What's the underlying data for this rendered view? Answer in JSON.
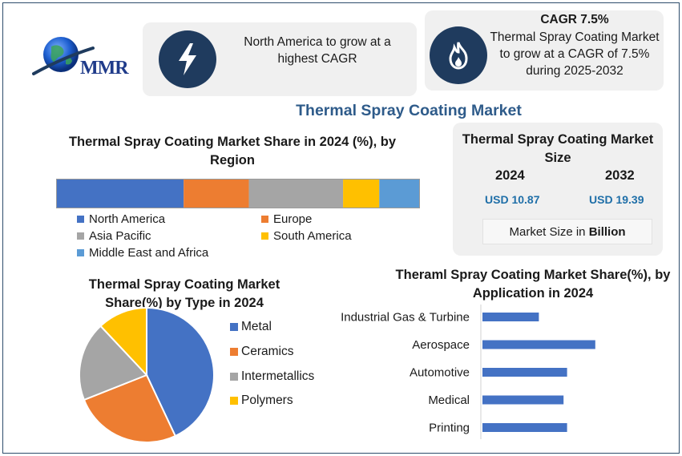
{
  "brand": {
    "logo_text": "MMR"
  },
  "callouts": {
    "north_america": "North America to grow at a highest CAGR",
    "cagr_title": "CAGR 7.5%",
    "cagr_text": "Thermal Spray Coating Market to grow at a CAGR of 7.5% during 2025-2032"
  },
  "main_title": "Thermal Spray Coating Market",
  "market_size": {
    "title": "Thermal Spray Coating Market Size",
    "year_a": "2024",
    "year_b": "2032",
    "value_a": "USD 10.87",
    "value_b": "USD 19.39",
    "unit_note_prefix": "Market Size in ",
    "unit_note_bold": "Billion"
  },
  "colors": {
    "blue": "#4472c4",
    "orange": "#ed7d31",
    "gray": "#a5a5a5",
    "yellow": "#ffc000",
    "lightblue": "#5b9bd5",
    "navy": "#1f3b5e",
    "title_blue": "#2e5b8a",
    "value_blue": "#1f6fa8"
  },
  "icons": {
    "lightning": "lightning-icon",
    "flame": "flame-icon",
    "globe": "globe-icon"
  },
  "chart_data": [
    {
      "type": "bar",
      "orientation": "stacked-horizontal",
      "title": "Thermal Spray Coating Market Share in 2024 (%), by Region",
      "categories": [
        "North America",
        "Europe",
        "Asia Pacific",
        "South America",
        "Middle East and Africa"
      ],
      "values": [
        35,
        18,
        26,
        10,
        11
      ],
      "legend_position": "bottom"
    },
    {
      "type": "pie",
      "title": "Thermal Spray Coating Market Share(%) by Type in 2024",
      "categories": [
        "Metal",
        "Ceramics",
        "Intermetallics",
        "Polymers"
      ],
      "values": [
        43,
        26,
        19,
        12
      ],
      "legend_position": "right"
    },
    {
      "type": "bar",
      "orientation": "horizontal",
      "title": "Theraml Spray Coating Market Share(%), by Application in 2024",
      "categories": [
        "Industrial Gas & Turbine",
        "Aerospace",
        "Automotive",
        "Medical",
        "Printing"
      ],
      "values": [
        16,
        32,
        24,
        23,
        24
      ],
      "xlim": [
        0,
        50
      ],
      "grid": false
    }
  ]
}
